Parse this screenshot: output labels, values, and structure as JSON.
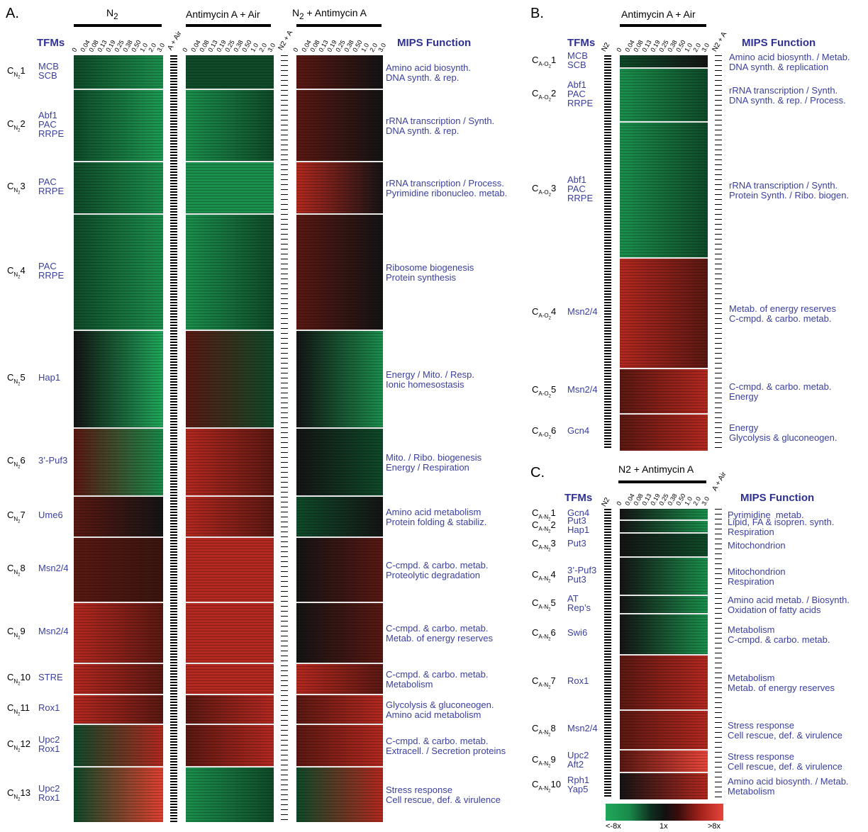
{
  "panelA": {
    "letter": "A.",
    "conditions": [
      "N",
      "Antimycin A + Air",
      "N"
    ],
    "cond1_sub": "2",
    "cond3_sub": "2",
    "cond3_suffix": " + Antimycin A",
    "tfms_header": "TFMs",
    "mips_header": "MIPS Function",
    "strip_label_1": "A + Air",
    "strip_label_2": "N2 + A",
    "timepoints": [
      "0",
      "0.04",
      "0.08",
      "0.13",
      "0.19",
      "0.25",
      "0.38",
      "0.50",
      "1.0",
      "2.0",
      "3.0"
    ],
    "clusters": [
      {
        "id": "1",
        "tfms": "MCB\nSCB",
        "mips": "Amino acid biosynth.\nDNA synth. & rep."
      },
      {
        "id": "2",
        "tfms": "Abf1\nPAC\nRRPE",
        "mips": "rRNA transcription / Synth.\nDNA synth. & rep."
      },
      {
        "id": "3",
        "tfms": "PAC\nRRPE",
        "mips": "rRNA transcription / Process.\nPyrimidine ribonucleo. metab."
      },
      {
        "id": "4",
        "tfms": "PAC\nRRPE",
        "mips": "Ribosome biogenesis\nProtein synthesis"
      },
      {
        "id": "5",
        "tfms": "Hap1",
        "mips": "Energy / Mito. / Resp.\nIonic homesostasis"
      },
      {
        "id": "6",
        "tfms": "3’-Puf3",
        "mips": "Mito. / Ribo. biogenesis\nEnergy / Respiration"
      },
      {
        "id": "7",
        "tfms": "Ume6",
        "mips": "Amino acid metabolism\nProtein folding & stabiliz."
      },
      {
        "id": "8",
        "tfms": "Msn2/4",
        "mips": "C-cmpd. & carbo. metab.\nProteolytic degradation"
      },
      {
        "id": "9",
        "tfms": "Msn2/4",
        "mips": "C-cmpd. & carbo. metab.\nMetab. of energy reserves"
      },
      {
        "id": "10",
        "tfms": "STRE",
        "mips": "C-cmpd. & carbo. metab.\nMetabolism"
      },
      {
        "id": "11",
        "tfms": "Rox1",
        "mips": "Glycolysis & gluconeogen.\nAmino acid metabolism"
      },
      {
        "id": "12",
        "tfms": "Upc2\nRox1",
        "mips": "C-cmpd. & carbo. metab.\nExtracell. / Secretion proteins"
      },
      {
        "id": "13",
        "tfms": "Upc2\nRox1",
        "mips": "Stress response\nCell rescue, def. & virulence"
      }
    ]
  },
  "panelB": {
    "letter": "B.",
    "condition": "Antimycin A + Air",
    "tfms_header": "TFMs",
    "mips_header": "MIPS Function",
    "strip_label_left": "N2",
    "strip_label_right": "N2 + A",
    "timepoints": [
      "0",
      "0.04",
      "0.08",
      "0.13",
      "0.19",
      "0.25",
      "0.38",
      "0.50",
      "1.0",
      "2.0",
      "3.0"
    ],
    "clusters": [
      {
        "id": "1",
        "tfms": "MCB\nSCB",
        "mips": "Amino acid biosynth. / Metab.\nDNA synth. & replication"
      },
      {
        "id": "2",
        "tfms": "Abf1\nPAC\nRRPE",
        "mips": "rRNA transcription / Synth.\nDNA synth. & rep. / Process."
      },
      {
        "id": "3",
        "tfms": "Abf1\nPAC\nRRPE",
        "mips": "rRNA transcription / Synth.\nProtein Synth. / Ribo. biogen."
      },
      {
        "id": "4",
        "tfms": "Msn2/4",
        "mips": "Metab. of energy reserves\nC-cmpd. & carbo. metab."
      },
      {
        "id": "5",
        "tfms": "Msn2/4",
        "mips": "C-cmpd. & carbo. metab.\nEnergy"
      },
      {
        "id": "6",
        "tfms": "Gcn4",
        "mips": "Energy\nGlycolysis & gluconeogen."
      }
    ]
  },
  "panelC": {
    "letter": "C.",
    "condition": "N2 + Antimycin A",
    "tfms_header": "TFMs",
    "mips_header": "MIPS Function",
    "strip_label_left": "N2",
    "strip_label_right": "A + Air",
    "timepoints": [
      "0",
      "0.04",
      "0.08",
      "0.13",
      "0.19",
      "0.25",
      "0.38",
      "0.50",
      "1.0",
      "2.0",
      "3.0"
    ],
    "clusters": [
      {
        "id": "1",
        "tfms": "Gcn4",
        "mips": "Pyrimidine  metab."
      },
      {
        "id": "2",
        "tfms": "Put3\nHap1",
        "mips": "Lipid, FA & isopren. synth.\nRespiration"
      },
      {
        "id": "3",
        "tfms": "Put3",
        "mips": "Mitochondrion"
      },
      {
        "id": "4",
        "tfms": "3’-Puf3\nPut3",
        "mips": "Mitochondrion\nRespiration"
      },
      {
        "id": "5",
        "tfms": "AT\nRep’s",
        "mips": "Amino acid metab. / Biosynth.\nOxidation of fatty acids"
      },
      {
        "id": "6",
        "tfms": "Swi6",
        "mips": "Metabolism\nC-cmpd. & carbo. metab."
      },
      {
        "id": "7",
        "tfms": "Rox1",
        "mips": "Metabolism\nMetab. of energy reserves"
      },
      {
        "id": "8",
        "tfms": "Msn2/4",
        "mips": "Stress response\nCell rescue, def. & virulence"
      },
      {
        "id": "9",
        "tfms": "Upc2\nAft2",
        "mips": "Stress response\nCell rescue, def. & virulence"
      },
      {
        "id": "10",
        "tfms": "Rph1\nYap5",
        "mips": "Amino acid biosynth. / Metab.\nMetabolism"
      }
    ]
  },
  "colorbar": {
    "low": "<-8x",
    "mid": "1x",
    "high": ">8x",
    "low_color": "#1fa85a",
    "mid_color": "#111111",
    "high_color": "#e8453a"
  },
  "cluster_prefix": "C"
}
